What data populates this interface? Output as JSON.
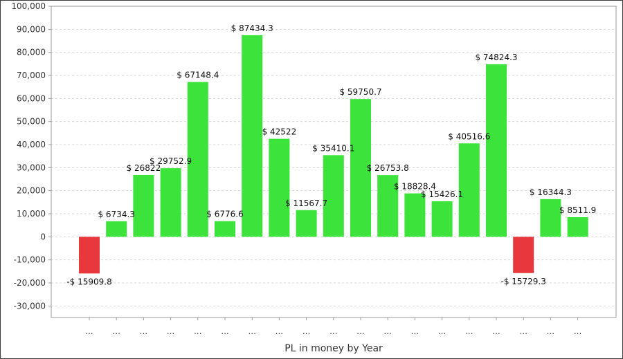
{
  "chart_data": {
    "type": "bar",
    "xlabel": "PL in money by Year",
    "ylim": [
      -35000,
      100000
    ],
    "yticks": [
      -30000,
      -20000,
      -10000,
      0,
      10000,
      20000,
      30000,
      40000,
      50000,
      60000,
      70000,
      80000,
      90000,
      100000
    ],
    "ytick_labels": [
      "-30,000",
      "-20,000",
      "-10,000",
      "0",
      "10,000",
      "20,000",
      "30,000",
      "40,000",
      "50,000",
      "60,000",
      "70,000",
      "80,000",
      "90,000",
      "100,000"
    ],
    "grid": true,
    "categories": [
      "...",
      "...",
      "...",
      "...",
      "...",
      "...",
      "...",
      "...",
      "...",
      "...",
      "...",
      "...",
      "...",
      "...",
      "...",
      "...",
      "...",
      "...",
      "..."
    ],
    "values": [
      -15909.8,
      6734.3,
      26822,
      29752.9,
      67148.4,
      6776.6,
      87434.3,
      42522,
      11567.7,
      35410.1,
      59750.7,
      26753.8,
      18828.4,
      15426.1,
      40516.6,
      74824.3,
      -15729.3,
      16344.3,
      8511.9
    ],
    "data_labels": [
      "-$ 15909.8",
      "$ 6734.3",
      "$ 26822",
      "$ 29752.9",
      "$ 67148.4",
      "$ 6776.6",
      "$ 87434.3",
      "$ 42522",
      "$ 11567.7",
      "$ 35410.1",
      "$ 59750.7",
      "$ 26753.8",
      "$ 18828.4",
      "$ 15426.1",
      "$ 40516.6",
      "$ 74824.3",
      "-$ 15729.3",
      "$ 16344.3",
      "$ 8511.9"
    ],
    "colors": {
      "positive": "#3be33b",
      "negative": "#e8383d"
    }
  }
}
